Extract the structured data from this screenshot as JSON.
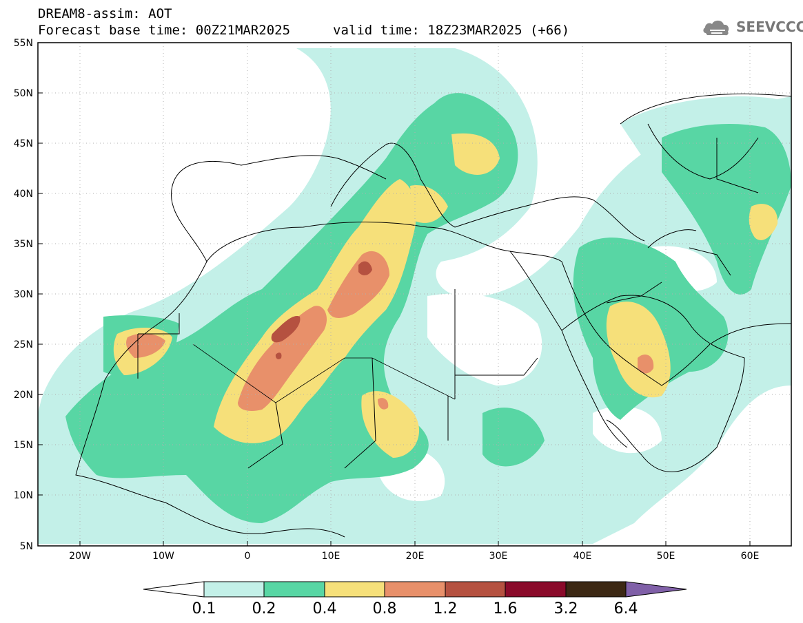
{
  "header": {
    "title_line1": "DREAM8-assim: AOT",
    "title_line2": "Forecast base time: 00Z21MAR2025",
    "valid_time": "valid time: 18Z23MAR2025 (+66)",
    "logo_text": "SEEVCCC"
  },
  "map": {
    "projection": "lat-lon",
    "lon_range": [
      -25,
      65
    ],
    "lat_range": [
      5,
      55
    ],
    "lat_labels": [
      "55N",
      "50N",
      "45N",
      "40N",
      "35N",
      "30N",
      "25N",
      "20N",
      "15N",
      "10N",
      "5N"
    ],
    "lon_labels": [
      "20W",
      "10W",
      "0",
      "10E",
      "20E",
      "30E",
      "40E",
      "50E",
      "60E"
    ],
    "grid": "dotted",
    "variable": "AOT"
  },
  "colorbar": {
    "labels": [
      "0.1",
      "0.2",
      "0.4",
      "0.8",
      "1.2",
      "1.6",
      "3.2",
      "6.4"
    ],
    "colors": [
      "#ffffff",
      "#c3f0e8",
      "#58d6a4",
      "#f6e07a",
      "#e8906a",
      "#b55140",
      "#8a0a2a",
      "#3c2814",
      "#8060a8"
    ]
  }
}
